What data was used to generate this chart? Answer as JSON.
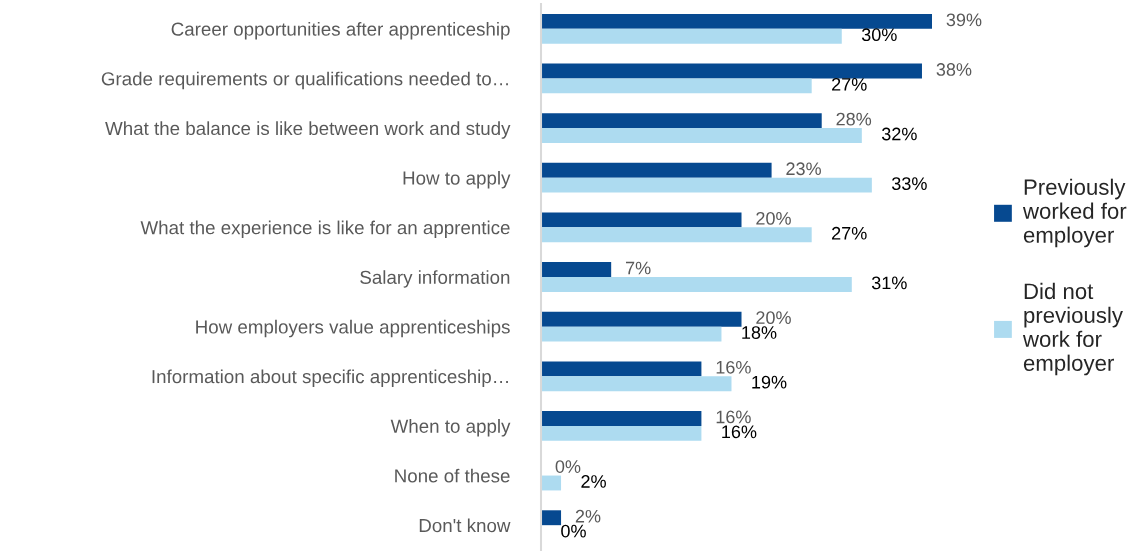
{
  "chart_data": {
    "type": "bar",
    "orientation": "horizontal",
    "categories": [
      "Career opportunities after apprenticeship",
      "Grade requirements or qualifications needed to…",
      "What the balance is like between work and study",
      "How to apply",
      "What the experience is like for an apprentice",
      "Salary information",
      "How employers value apprenticeships",
      "Information about specific apprenticeship…",
      "When to apply",
      "None of these",
      "Don't know"
    ],
    "series": [
      {
        "name": "Previously worked for employer",
        "color": "#064990",
        "values": [
          39,
          38,
          28,
          23,
          20,
          7,
          20,
          16,
          16,
          0,
          2
        ],
        "value_labels": [
          "39%",
          "38%",
          "28%",
          "23%",
          "20%",
          "7%",
          "20%",
          "16%",
          "16%",
          "0%",
          "2%"
        ]
      },
      {
        "name": "Did not previously work for employer",
        "color": "#addbf0",
        "values": [
          30,
          27,
          32,
          33,
          27,
          31,
          18,
          19,
          16,
          2,
          0
        ],
        "value_labels": [
          "30%",
          "27%",
          "32%",
          "33%",
          "27%",
          "31%",
          "18%",
          "19%",
          "16%",
          "2%",
          "0%"
        ]
      }
    ],
    "tick_labels": "y",
    "grid": false,
    "legend": "right"
  }
}
